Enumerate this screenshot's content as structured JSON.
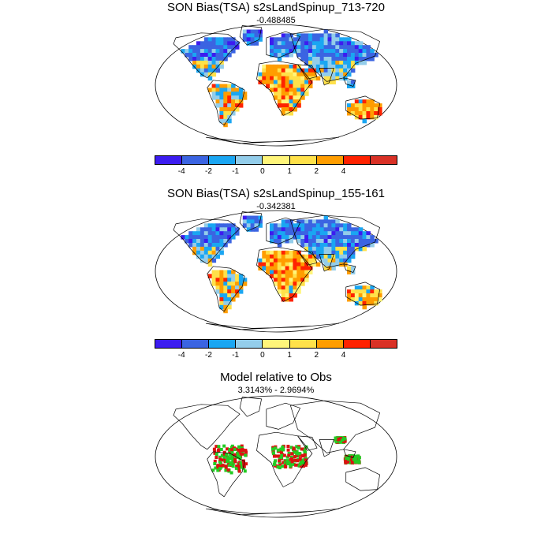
{
  "panels": [
    {
      "title": "SON Bias(TSA) s2sLandSpinup_713-720",
      "subtitle": "-0.488485",
      "type": "bias"
    },
    {
      "title": "SON Bias(TSA) s2sLandSpinup_155-161",
      "subtitle": "-0.342381",
      "type": "bias"
    },
    {
      "title": "Model relative to Obs",
      "subtitle": "3.3143% - 2.9694%",
      "type": "relative"
    }
  ],
  "colorbar": {
    "colors": [
      "#3c1cf0",
      "#3b64e2",
      "#1aa6f2",
      "#93cdea",
      "#fff57a",
      "#ffe14a",
      "#ff9d00",
      "#ff2200",
      "#d93126"
    ],
    "labels": [
      "-4",
      "-2",
      "-1",
      "0",
      "1",
      "2",
      "4"
    ]
  },
  "relative_colors": {
    "model": "#22cc22",
    "obs": "#dd1111"
  }
}
